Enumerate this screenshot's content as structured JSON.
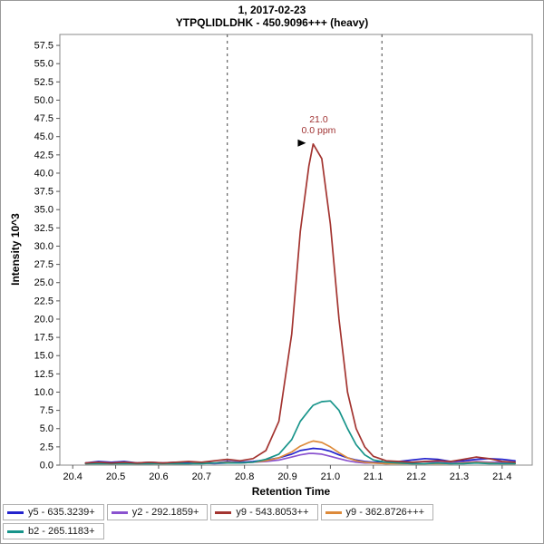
{
  "chart_data": {
    "type": "line",
    "title": "1, 2017-02-23",
    "subtitle": "YTPQLIDLDHK - 450.9096+++ (heavy)",
    "xlabel": "Retention Time",
    "ylabel": "Intensity 10^3",
    "xlim": [
      20.37,
      21.47
    ],
    "ylim": [
      0,
      59
    ],
    "x_ticks": [
      20.4,
      20.5,
      20.6,
      20.7,
      20.8,
      20.9,
      21.0,
      21.1,
      21.2,
      21.3,
      21.4
    ],
    "y_tick_step": 2.5,
    "y_tick_max": 57.5,
    "grid": false,
    "legend_position": "bottom",
    "boundaries": [
      20.76,
      21.12
    ],
    "annotation": {
      "rt_label": "21.0",
      "ppm_label": "0.0 ppm",
      "x": 20.96,
      "y": 44.0,
      "color": "#a03333"
    },
    "x": [
      20.43,
      20.46,
      20.49,
      20.52,
      20.55,
      20.58,
      20.61,
      20.64,
      20.67,
      20.7,
      20.73,
      20.76,
      20.79,
      20.82,
      20.85,
      20.88,
      20.91,
      20.93,
      20.95,
      20.96,
      20.98,
      21.0,
      21.02,
      21.04,
      21.06,
      21.08,
      21.1,
      21.13,
      21.16,
      21.19,
      21.22,
      21.25,
      21.28,
      21.31,
      21.34,
      21.37,
      21.4,
      21.43
    ],
    "draw_order": [
      0,
      1,
      3,
      4,
      2
    ],
    "series": [
      {
        "name": "y5 - 635.3239+",
        "color": "#2323cd",
        "values": [
          0.3,
          0.5,
          0.4,
          0.5,
          0.3,
          0.4,
          0.3,
          0.4,
          0.3,
          0.4,
          0.3,
          0.5,
          0.4,
          0.5,
          0.7,
          1.0,
          1.5,
          2.0,
          2.2,
          2.3,
          2.2,
          1.9,
          1.4,
          1.0,
          0.7,
          0.5,
          0.4,
          0.4,
          0.5,
          0.7,
          0.9,
          0.8,
          0.5,
          0.6,
          0.8,
          0.9,
          0.8,
          0.6
        ]
      },
      {
        "name": "y2 - 292.1859+",
        "color": "#8a52cf",
        "values": [
          0.2,
          0.3,
          0.2,
          0.3,
          0.2,
          0.2,
          0.3,
          0.2,
          0.2,
          0.3,
          0.2,
          0.3,
          0.3,
          0.4,
          0.5,
          0.7,
          1.1,
          1.4,
          1.6,
          1.6,
          1.5,
          1.2,
          0.9,
          0.6,
          0.4,
          0.3,
          0.3,
          0.2,
          0.3,
          0.4,
          0.5,
          0.4,
          0.3,
          0.4,
          0.5,
          0.4,
          0.4,
          0.3
        ]
      },
      {
        "name": "y9 - 543.8053++",
        "color": "#a33430",
        "values": [
          0.3,
          0.4,
          0.3,
          0.4,
          0.3,
          0.4,
          0.3,
          0.4,
          0.5,
          0.4,
          0.6,
          0.8,
          0.6,
          0.9,
          2.0,
          6.0,
          18.0,
          32.0,
          41.0,
          44.0,
          42.0,
          33.0,
          20.0,
          10.0,
          5.0,
          2.5,
          1.2,
          0.6,
          0.5,
          0.4,
          0.5,
          0.6,
          0.5,
          0.8,
          1.1,
          0.9,
          0.5,
          0.4
        ]
      },
      {
        "name": "y9 - 362.8726+++",
        "color": "#dd8a3a",
        "values": [
          0.2,
          0.2,
          0.2,
          0.2,
          0.2,
          0.2,
          0.2,
          0.2,
          0.2,
          0.3,
          0.3,
          0.4,
          0.3,
          0.4,
          0.6,
          1.0,
          1.8,
          2.6,
          3.1,
          3.3,
          3.1,
          2.5,
          1.7,
          1.0,
          0.6,
          0.4,
          0.3,
          0.2,
          0.2,
          0.2,
          0.2,
          0.2,
          0.2,
          0.3,
          0.4,
          0.3,
          0.2,
          0.2
        ]
      },
      {
        "name": "b2 - 265.1183+",
        "color": "#17948a",
        "values": [
          0.2,
          0.2,
          0.2,
          0.2,
          0.2,
          0.2,
          0.2,
          0.2,
          0.2,
          0.2,
          0.3,
          0.3,
          0.3,
          0.4,
          0.8,
          1.5,
          3.5,
          6.0,
          7.5,
          8.2,
          8.7,
          8.8,
          7.5,
          5.0,
          2.8,
          1.4,
          0.7,
          0.4,
          0.3,
          0.2,
          0.2,
          0.3,
          0.2,
          0.2,
          0.3,
          0.2,
          0.2,
          0.2
        ]
      }
    ]
  }
}
